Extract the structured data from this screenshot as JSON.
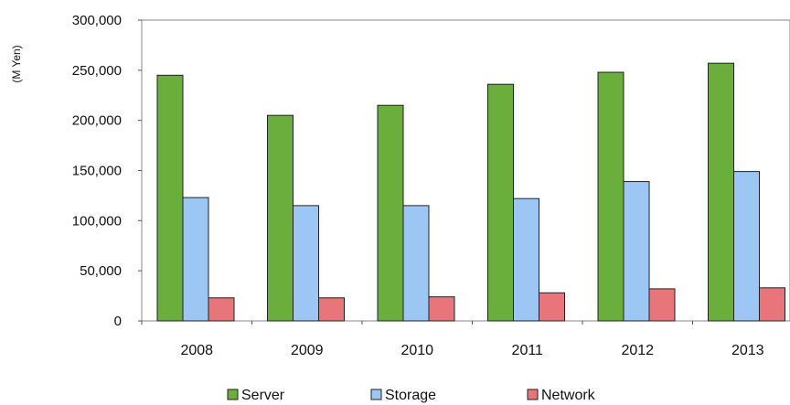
{
  "chart_data": {
    "type": "bar",
    "title": "",
    "xlabel": "",
    "ylabel": "(M Yen)",
    "ylim": [
      0,
      300000
    ],
    "yticks": [
      0,
      50000,
      100000,
      150000,
      200000,
      250000,
      300000
    ],
    "ytick_labels": [
      "0",
      "50,000",
      "100,000",
      "150,000",
      "200,000",
      "250,000",
      "300,000"
    ],
    "grid": false,
    "legend_position": "bottom",
    "categories": [
      "2008",
      "2009",
      "2010",
      "2011",
      "2012",
      "2013"
    ],
    "series": [
      {
        "name": "Server",
        "color": "#6aaf3c",
        "values": [
          245000,
          205000,
          215000,
          236000,
          248000,
          257000
        ]
      },
      {
        "name": "Storage",
        "color": "#9cc7f5",
        "values": [
          123000,
          115000,
          115000,
          122000,
          139000,
          149000
        ]
      },
      {
        "name": "Network",
        "color": "#e8757a",
        "values": [
          23000,
          23000,
          24000,
          28000,
          32000,
          33000
        ]
      }
    ]
  }
}
